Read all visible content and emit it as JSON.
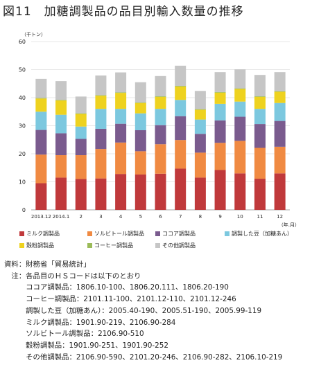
{
  "title": "図11　加糖調製品の品目別輸入数量の推移",
  "chart_data": {
    "type": "bar",
    "stacked": true,
    "unit_label": "（千トン）",
    "xunit_label": "（年.月）",
    "categories": [
      "2013.12",
      "2014.1",
      "2",
      "3",
      "4",
      "5",
      "6",
      "7",
      "8",
      "9",
      "10",
      "11",
      "12"
    ],
    "ylim": [
      0,
      60
    ],
    "yticks": [
      0,
      10,
      20,
      30,
      40,
      50,
      60
    ],
    "grid": true,
    "legend_position": "bottom",
    "series": [
      {
        "name": "ミルク調製品",
        "color": "#c0393b",
        "values": [
          9.5,
          11.5,
          11.0,
          11.2,
          12.8,
          12.6,
          12.9,
          14.7,
          11.5,
          14.2,
          13.0,
          11.1,
          13.0
        ]
      },
      {
        "name": "ソルビトール調製品",
        "color": "#f08a42",
        "values": [
          10.2,
          8.0,
          8.5,
          10.5,
          11.2,
          8.3,
          10.5,
          10.2,
          8.9,
          9.7,
          11.6,
          11.0,
          9.5
        ]
      },
      {
        "name": "ココア調製品",
        "color": "#7a5b8e",
        "values": [
          8.8,
          7.8,
          5.8,
          7.2,
          6.7,
          7.5,
          6.8,
          8.5,
          6.7,
          8.0,
          8.6,
          8.5,
          9.2
        ]
      },
      {
        "name": "調製した豆（加糖あん）",
        "color": "#7cc8df",
        "values": [
          6.5,
          6.6,
          4.4,
          7.1,
          5.3,
          6.0,
          5.8,
          5.8,
          5.1,
          5.9,
          5.4,
          5.4,
          6.4
        ]
      },
      {
        "name": "穀粉調製品",
        "color": "#eed21f",
        "values": [
          4.7,
          5.1,
          4.5,
          4.7,
          5.7,
          3.7,
          4.3,
          4.8,
          3.5,
          4.0,
          4.5,
          4.3,
          4.0
        ]
      },
      {
        "name": "コーヒー調製品",
        "color": "#9bbb59",
        "values": [
          0.2,
          0.2,
          0.2,
          0.2,
          0.2,
          0.2,
          0.2,
          0.2,
          0.2,
          0.2,
          0.2,
          0.2,
          0.2
        ]
      },
      {
        "name": "その他調製品",
        "color": "#c6c6c6",
        "values": [
          6.8,
          6.7,
          6.0,
          7.0,
          7.1,
          7.2,
          7.2,
          7.2,
          6.5,
          7.1,
          6.8,
          7.6,
          6.8
        ]
      }
    ]
  },
  "notes": [
    "資料：財務省「貿易統計」",
    "　注：各品目のＨＳコードは以下のとおり",
    "　　　ココア調製品：1806.10-100、1806.20.111、1806.20-190",
    "　　　コーヒー調製品：2101.11-100、2101.12-110、2101.12-246",
    "　　　調製した豆（加糖あん）：2005.40-190、2005.51-190、2005.99-119",
    "　　　ミルク調製品：1901.90-219、2106.90-284",
    "　　　ソルビトール調製品：2106.90-510",
    "　　　穀粉調製品：1901.90-251、1901.90-252",
    "　　　その他調製品：2106.90-590、2101.20-246、2106.90-282、2106.10-219"
  ]
}
